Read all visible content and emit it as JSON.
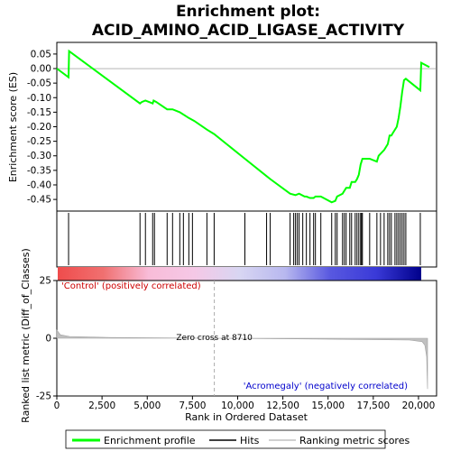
{
  "chart_data": {
    "type": "line",
    "title_line1": "Enrichment plot:",
    "title_line2": "ACID_AMINO_ACID_LIGASE_ACTIVITY",
    "top_panel": {
      "ylabel": "Enrichment score (ES)",
      "ylim": [
        -0.49,
        0.09
      ],
      "yticks": [
        0.05,
        0.0,
        -0.05,
        -0.1,
        -0.15,
        -0.2,
        -0.25,
        -0.3,
        -0.35,
        -0.4,
        -0.45
      ],
      "ytick_labels": [
        "0.05",
        "0.00",
        "-0.05",
        "-0.10",
        "-0.15",
        "-0.20",
        "-0.25",
        "-0.30",
        "-0.35",
        "-0.40",
        "-0.45"
      ],
      "xlim": [
        0,
        21000
      ],
      "line_color": "#00ff00",
      "series": [
        {
          "x": [
            0,
            650,
            680,
            4600,
            4700,
            4900,
            5300,
            5350,
            5500,
            6100,
            6400,
            6800,
            7300,
            7600,
            8300,
            8700,
            10400,
            11600,
            11800,
            12900,
            13200,
            13400,
            13700,
            13800,
            14000,
            14200,
            14300,
            14600,
            15200,
            15400,
            15500,
            15800,
            16000,
            16200,
            16300,
            16500,
            16600,
            16700,
            16800,
            16900,
            17300,
            17700,
            17800,
            18100,
            18300,
            18400,
            18500,
            18600,
            18800,
            18900,
            19000,
            19100,
            19200,
            19300,
            20100,
            20150,
            20600
          ],
          "y": [
            0.0,
            -0.03,
            0.06,
            -0.12,
            -0.115,
            -0.11,
            -0.12,
            -0.11,
            -0.115,
            -0.14,
            -0.14,
            -0.15,
            -0.17,
            -0.18,
            -0.21,
            -0.225,
            -0.31,
            -0.37,
            -0.38,
            -0.43,
            -0.435,
            -0.43,
            -0.44,
            -0.44,
            -0.445,
            -0.445,
            -0.44,
            -0.44,
            -0.46,
            -0.455,
            -0.44,
            -0.43,
            -0.41,
            -0.41,
            -0.39,
            -0.39,
            -0.38,
            -0.365,
            -0.33,
            -0.31,
            -0.31,
            -0.32,
            -0.3,
            -0.28,
            -0.26,
            -0.23,
            -0.23,
            -0.22,
            -0.2,
            -0.17,
            -0.13,
            -0.08,
            -0.04,
            -0.035,
            -0.075,
            0.02,
            0.005
          ]
        }
      ]
    },
    "hits_panel": {
      "hit_positions": [
        650,
        4600,
        4900,
        5300,
        5400,
        6100,
        6400,
        6800,
        7000,
        7300,
        7500,
        8300,
        8700,
        10400,
        11600,
        11800,
        12900,
        13100,
        13200,
        13300,
        13400,
        13600,
        13800,
        14000,
        14200,
        14300,
        14600,
        15200,
        15400,
        15500,
        15800,
        15900,
        16000,
        16200,
        16300,
        16500,
        16600,
        16700,
        16800,
        16850,
        16900,
        17300,
        17700,
        17900,
        18100,
        18300,
        18400,
        18500,
        18700,
        18800,
        18900,
        19000,
        19100,
        19200,
        19300,
        20100
      ]
    },
    "colorbar": {
      "gradient": [
        "#ef4c4c",
        "#f07070",
        "#f8bcd8",
        "#f5c8e6",
        "#d8d6f2",
        "#b8b8ef",
        "#5858e0",
        "#3a3ad8",
        "#00008b"
      ]
    },
    "bottom_panel": {
      "ylabel": "Ranked list metric (Diff_of_Classes)",
      "xlabel": "Rank in Ordered Dataset",
      "ylim": [
        -25,
        25
      ],
      "yticks": [
        25,
        0,
        -25
      ],
      "ytick_labels": [
        "25",
        "0",
        "-25"
      ],
      "xlim": [
        0,
        21000
      ],
      "xticks": [
        0,
        2500,
        5000,
        7500,
        10000,
        12500,
        15000,
        17500,
        20000
      ],
      "xtick_labels": [
        "0",
        "2,500",
        "5,000",
        "7,500",
        "10,000",
        "12,500",
        "15,000",
        "17,500",
        "20,000"
      ],
      "zero_cross": 8710,
      "zero_cross_label": "Zero cross at 8710",
      "positive_label": "'Control' (positively correlated)",
      "negative_label": "'Acromegaly' (negatively correlated)",
      "metric_x": [
        0,
        200,
        700,
        3000,
        8710,
        14000,
        19500,
        20200,
        20350,
        20450,
        20500
      ],
      "metric_y": [
        3.5,
        1.5,
        0.8,
        0.3,
        0.0,
        -0.3,
        -0.8,
        -1.5,
        -3,
        -8,
        -22
      ]
    },
    "legend": {
      "placement": "bottom",
      "items": [
        {
          "label": "Enrichment profile",
          "color": "#00ff00",
          "style": "thick-line"
        },
        {
          "label": "Hits",
          "color": "#000000",
          "style": "line"
        },
        {
          "label": "Ranking metric scores",
          "color": "#c0c0c0",
          "style": "line"
        }
      ]
    }
  }
}
